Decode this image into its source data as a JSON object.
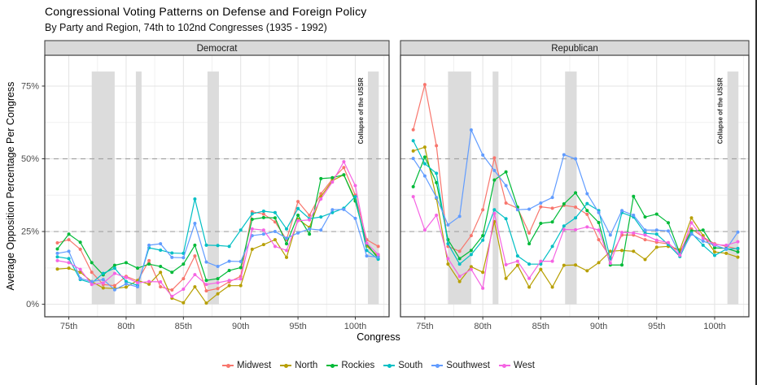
{
  "title": "Congressional Voting Patterns on Defense and Foreign Policy",
  "subtitle": "By Party and Region, 74th to 102nd Congresses (1935 - 1992)",
  "axes": {
    "x_title": "Congress",
    "y_title": "Average Opposition Percentage Per Congress"
  },
  "legend": {
    "items": [
      {
        "label": "Midwest",
        "color": "#F8766D"
      },
      {
        "label": "North",
        "color": "#B79F00"
      },
      {
        "label": "Rockies",
        "color": "#00BA38"
      },
      {
        "label": "South",
        "color": "#00BFC4"
      },
      {
        "label": "Southwest",
        "color": "#619CFF"
      },
      {
        "label": "West",
        "color": "#F564E3"
      }
    ]
  },
  "chart_data": {
    "type": "line",
    "x_label": "Congress",
    "y_label": "Average Opposition Percentage Per Congress",
    "x": [
      74,
      75,
      76,
      77,
      78,
      79,
      80,
      81,
      82,
      83,
      84,
      85,
      86,
      87,
      88,
      89,
      90,
      91,
      92,
      93,
      94,
      95,
      96,
      97,
      98,
      99,
      100,
      101,
      102
    ],
    "x_axis": {
      "ticks": [
        75,
        80,
        85,
        90,
        95,
        100
      ],
      "tick_labels": [
        "75th",
        "80th",
        "85th",
        "90th",
        "95th",
        "100th"
      ],
      "domain": [
        72.9,
        102.95
      ],
      "minor": [
        77.5,
        82.5,
        87.5,
        92.5,
        97.5,
        102.5
      ]
    },
    "y_axis": {
      "ticks": [
        0,
        25,
        50,
        75
      ],
      "tick_labels": [
        "0%",
        "25%",
        "50%",
        "75%"
      ],
      "domain": [
        -4.3,
        85.6
      ],
      "minor": [
        12.5,
        37.5,
        62.5
      ]
    },
    "reference_lines": [
      25,
      50
    ],
    "event_bands": [
      {
        "from": 77.0,
        "to": 79.0
      },
      {
        "from": 80.85,
        "to": 81.35
      },
      {
        "from": 87.1,
        "to": 88.1
      },
      {
        "from": 101.1,
        "to": 102.05,
        "label": "Collapse of the USSR"
      }
    ],
    "band_value_range": [
      0,
      80
    ],
    "panels": [
      {
        "name": "Democrat",
        "series": [
          {
            "name": "Midwest",
            "color": "#F8766D",
            "values": [
              21.1,
              22.2,
              18.9,
              11.0,
              6.8,
              6.4,
              9.6,
              8.0,
              15.0,
              6.0,
              4.9,
              8.8,
              16.6,
              4.6,
              5.4,
              7.7,
              9.6,
              31.8,
              31.0,
              28.3,
              22.2,
              35.3,
              30.6,
              38.0,
              43.0,
              47.0,
              37.5,
              22.2,
              19.9
            ]
          },
          {
            "name": "North",
            "color": "#B79F00",
            "values": [
              12.1,
              12.4,
              11.0,
              7.8,
              5.6,
              5.4,
              5.9,
              8.2,
              6.9,
              11.0,
              2.1,
              0.5,
              6.0,
              0.4,
              3.6,
              6.4,
              6.4,
              18.9,
              20.5,
              22.2,
              16.1,
              29.2,
              26.4,
              37.0,
              42.5,
              44.5,
              36.0,
              20.0,
              16.5
            ]
          },
          {
            "name": "Rockies",
            "color": "#00BA38",
            "values": [
              19.0,
              24.1,
              21.3,
              14.3,
              10.1,
              13.4,
              14.3,
              12.4,
              13.8,
              13.0,
              11.0,
              13.8,
              20.3,
              8.2,
              8.8,
              11.6,
              12.6,
              29.2,
              29.8,
              29.7,
              20.8,
              30.6,
              24.1,
              43.2,
              43.5,
              44.5,
              35.5,
              20.8,
              15.7
            ]
          },
          {
            "name": "South",
            "color": "#00BFC4",
            "values": [
              16.3,
              15.7,
              8.5,
              7.3,
              10.6,
              12.4,
              7.8,
              6.5,
              19.4,
              18.6,
              17.6,
              17.5,
              36.2,
              20.3,
              20.2,
              19.9,
              25.5,
              31.1,
              32.0,
              31.5,
              25.9,
              32.9,
              29.4,
              30.0,
              31.5,
              33.0,
              37.0,
              18.5,
              15.5
            ]
          },
          {
            "name": "Southwest",
            "color": "#619CFF",
            "values": [
              17.5,
              18.2,
              8.9,
              7.8,
              8.5,
              5.0,
              7.0,
              6.0,
              20.3,
              20.8,
              16.1,
              16.0,
              27.8,
              14.5,
              13.0,
              14.8,
              14.7,
              23.6,
              24.1,
              25.0,
              22.7,
              24.5,
              25.9,
              25.5,
              32.5,
              32.6,
              29.5,
              16.6,
              16.2
            ]
          },
          {
            "name": "West",
            "color": "#F564E3",
            "values": [
              15.0,
              14.3,
              12.0,
              6.8,
              7.3,
              10.6,
              9.2,
              7.4,
              7.8,
              7.7,
              2.7,
              5.2,
              10.2,
              6.8,
              7.4,
              8.2,
              8.7,
              25.9,
              25.5,
              19.9,
              18.5,
              28.7,
              29.0,
              36.2,
              42.0,
              49.0,
              40.8,
              21.0,
              17.1
            ]
          }
        ]
      },
      {
        "name": "Republican",
        "series": [
          {
            "name": "Midwest",
            "color": "#F8766D",
            "values": [
              60.0,
              75.5,
              54.5,
              19.9,
              18.2,
              23.6,
              32.5,
              50.3,
              34.8,
              33.0,
              24.5,
              33.5,
              33.0,
              34.0,
              33.4,
              30.9,
              22.2,
              16.1,
              23.8,
              23.8,
              22.2,
              21.3,
              20.8,
              18.0,
              25.9,
              23.1,
              20.8,
              19.9,
              19.0
            ]
          },
          {
            "name": "North",
            "color": "#B79F00",
            "values": [
              52.7,
              54.0,
              36.4,
              13.8,
              7.8,
              12.9,
              11.0,
              28.4,
              8.9,
              13.4,
              5.9,
              12.0,
              5.9,
              13.4,
              13.5,
              11.5,
              14.3,
              18.2,
              18.5,
              18.2,
              15.4,
              19.6,
              19.9,
              18.7,
              29.7,
              23.6,
              18.0,
              17.5,
              16.2
            ]
          },
          {
            "name": "Rockies",
            "color": "#00BA38",
            "values": [
              40.4,
              50.6,
              41.8,
              22.2,
              15.7,
              18.5,
              23.6,
              42.7,
              45.5,
              33.4,
              20.8,
              27.8,
              28.3,
              34.5,
              38.3,
              32.2,
              28.1,
              13.5,
              13.5,
              37.1,
              30.0,
              31.0,
              28.0,
              17.5,
              25.2,
              25.5,
              19.4,
              19.2,
              18.0
            ]
          },
          {
            "name": "South",
            "color": "#00BFC4",
            "values": [
              56.2,
              48.3,
              45.0,
              20.8,
              13.8,
              17.1,
              22.0,
              32.5,
              29.4,
              16.6,
              13.8,
              13.8,
              19.9,
              26.9,
              29.7,
              34.6,
              32.2,
              15.6,
              31.5,
              30.0,
              24.4,
              24.1,
              20.5,
              16.4,
              24.5,
              20.3,
              16.8,
              18.9,
              19.2
            ]
          },
          {
            "name": "Southwest",
            "color": "#619CFF",
            "values": [
              50.1,
              44.1,
              36.7,
              27.3,
              30.2,
              59.9,
              51.3,
              46.0,
              40.8,
              32.5,
              32.7,
              34.8,
              36.7,
              51.4,
              50.0,
              38.0,
              31.5,
              23.8,
              32.2,
              30.6,
              25.5,
              25.5,
              25.2,
              17.0,
              24.1,
              21.7,
              20.3,
              19.0,
              24.8
            ]
          },
          {
            "name": "West",
            "color": "#F564E3",
            "values": [
              37.0,
              25.5,
              30.6,
              15.7,
              9.6,
              12.0,
              5.5,
              31.2,
              13.6,
              14.8,
              8.9,
              14.8,
              14.8,
              25.7,
              25.6,
              26.6,
              25.5,
              14.1,
              24.7,
              24.5,
              23.8,
              22.0,
              21.2,
              16.8,
              28.0,
              22.7,
              20.5,
              20.3,
              21.5
            ]
          }
        ]
      }
    ],
    "title": "Congressional Voting Patterns on Defense and Foreign Policy",
    "subtitle": "By Party and Region, 74th to 102nd Congresses (1935 - 1992)",
    "legend_position": "bottom",
    "grid": true
  },
  "theme": {
    "strip_fill": "#d9d9d9",
    "strip_border": "#333333",
    "panel_border": "#333333",
    "grid_major": "#e3e3e3",
    "grid_minor": "#f0f0f0",
    "band_fill": "#dcdcdc",
    "reference_line_color": "#a3a3a3",
    "tick_label_color": "#4d4d4d",
    "annotation_color": "#333333"
  }
}
